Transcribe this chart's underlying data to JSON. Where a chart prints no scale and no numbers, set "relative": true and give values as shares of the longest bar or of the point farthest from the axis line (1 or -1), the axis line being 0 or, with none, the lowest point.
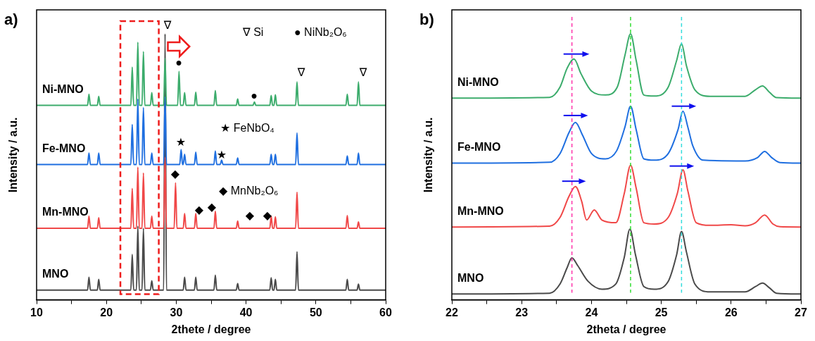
{
  "chart_data": [
    {
      "type": "line",
      "title": "a)",
      "xlabel": "2thete / degree",
      "ylabel": "Intensity / a.u.",
      "relative": true,
      "marker": "none",
      "line_style": "solid",
      "legend": false,
      "grid": false,
      "xlim": [
        10,
        60
      ],
      "xticks": [
        10,
        {
          "value": 15,
          "label": null
        },
        20,
        {
          "value": 25,
          "label": null
        },
        30,
        {
          "value": 35,
          "label": null
        },
        40,
        {
          "value": 45,
          "label": null
        },
        50,
        {
          "value": 55,
          "label": null
        },
        60
      ],
      "series": [
        {
          "name": "Ni-MNO",
          "color": "#3cac6c",
          "x": [
            10,
            17.3,
            17.5,
            17.7,
            18.7,
            18.9,
            19.1,
            23.5,
            23.7,
            23.9,
            24.3,
            24.5,
            24.7,
            25.1,
            25.3,
            25.5,
            26.3,
            26.5,
            26.7,
            28.2,
            28.4,
            28.6,
            30.2,
            30.4,
            30.6,
            31,
            31.2,
            31.4,
            32.6,
            32.8,
            33,
            35.4,
            35.6,
            35.8,
            38.6,
            38.8,
            39,
            41,
            41.2,
            41.4,
            43.4,
            43.6,
            43.8,
            44,
            44.2,
            44.4,
            47.1,
            47.3,
            47.5,
            54.3,
            54.5,
            54.7,
            55.9,
            56.1,
            56.3,
            60
          ],
          "values": [
            0.731,
            0.731,
            0.773,
            0.731,
            0.731,
            0.765,
            0.731,
            0.731,
            0.875,
            0.731,
            0.731,
            0.968,
            0.731,
            0.731,
            0.933,
            0.731,
            0.731,
            0.779,
            0.731,
            0.731,
            0.907,
            0.731,
            0.731,
            0.859,
            0.731,
            0.731,
            0.779,
            0.731,
            0.731,
            0.781,
            0.731,
            0.731,
            0.787,
            0.731,
            0.731,
            0.755,
            0.731,
            0.731,
            0.744,
            0.731,
            0.731,
            0.768,
            0.731,
            0.731,
            0.771,
            0.731,
            0.731,
            0.819,
            0.731,
            0.731,
            0.773,
            0.731,
            0.731,
            0.819,
            0.731,
            0.731
          ]
        },
        {
          "name": "Fe-MNO",
          "color": "#1f6fe0",
          "x": [
            10,
            17.3,
            17.5,
            17.7,
            18.7,
            18.9,
            19.1,
            23.5,
            23.7,
            23.9,
            24.3,
            24.5,
            24.7,
            25.1,
            25.3,
            25.5,
            26.3,
            26.5,
            26.7,
            28.2,
            28.4,
            28.6,
            30.5,
            30.7,
            30.9,
            31,
            31.2,
            31.4,
            32.6,
            32.8,
            33,
            35.4,
            35.6,
            35.8,
            36.3,
            36.5,
            36.7,
            38.6,
            38.8,
            39,
            43.4,
            43.6,
            43.8,
            44,
            44.2,
            44.4,
            47.1,
            47.3,
            47.5,
            54.3,
            54.5,
            54.7,
            55.9,
            56.1,
            56.3,
            60
          ],
          "values": [
            0.509,
            0.509,
            0.552,
            0.509,
            0.509,
            0.552,
            0.509,
            0.509,
            0.659,
            0.509,
            0.509,
            0.755,
            0.509,
            0.509,
            0.723,
            0.509,
            0.509,
            0.552,
            0.509,
            0.509,
            0.763,
            0.509,
            0.509,
            0.565,
            0.509,
            0.509,
            0.547,
            0.509,
            0.509,
            0.555,
            0.509,
            0.509,
            0.56,
            0.509,
            0.509,
            0.525,
            0.509,
            0.509,
            0.533,
            0.509,
            0.509,
            0.547,
            0.509,
            0.509,
            0.547,
            0.509,
            0.509,
            0.627,
            0.509,
            0.509,
            0.541,
            0.509,
            0.509,
            0.552,
            0.509,
            0.509
          ]
        },
        {
          "name": "Mn-MNO",
          "color": "#f04848",
          "x": [
            10,
            17.3,
            17.5,
            17.7,
            18.7,
            18.9,
            19.1,
            23.5,
            23.7,
            23.9,
            24.3,
            24.5,
            24.7,
            25.1,
            25.3,
            25.5,
            26.3,
            26.5,
            26.7,
            28.2,
            28.4,
            28.6,
            29.7,
            29.9,
            30.1,
            31,
            31.2,
            31.4,
            32.6,
            32.8,
            33,
            35.4,
            35.6,
            35.8,
            38.6,
            38.8,
            39,
            43.4,
            43.6,
            43.8,
            44,
            44.2,
            44.4,
            47.1,
            47.3,
            47.5,
            54.3,
            54.5,
            54.7,
            55.9,
            56.1,
            56.3,
            60
          ],
          "values": [
            0.269,
            0.269,
            0.315,
            0.269,
            0.269,
            0.309,
            0.269,
            0.269,
            0.419,
            0.269,
            0.269,
            0.499,
            0.269,
            0.269,
            0.477,
            0.269,
            0.269,
            0.315,
            0.269,
            0.269,
            0.536,
            0.269,
            0.269,
            0.44,
            0.269,
            0.269,
            0.325,
            0.269,
            0.269,
            0.325,
            0.269,
            0.269,
            0.333,
            0.269,
            0.269,
            0.296,
            0.269,
            0.269,
            0.315,
            0.269,
            0.269,
            0.312,
            0.269,
            0.269,
            0.405,
            0.269,
            0.269,
            0.317,
            0.269,
            0.269,
            0.293,
            0.269,
            0.269
          ]
        },
        {
          "name": "MNO",
          "color": "#4a4a4a",
          "x": [
            10,
            17.3,
            17.5,
            17.7,
            18.7,
            18.9,
            19.1,
            23.5,
            23.7,
            23.9,
            24.3,
            24.5,
            24.7,
            25.1,
            25.3,
            25.5,
            26.3,
            26.5,
            26.7,
            28.2,
            28.4,
            28.6,
            31,
            31.2,
            31.4,
            32.6,
            32.8,
            33,
            35.4,
            35.6,
            35.8,
            38.6,
            38.8,
            39,
            43.4,
            43.6,
            43.8,
            44,
            44.2,
            44.4,
            47.1,
            47.3,
            47.5,
            54.3,
            54.5,
            54.7,
            55.9,
            56.1,
            56.3,
            60
          ],
          "values": [
            0.037,
            0.037,
            0.085,
            0.037,
            0.037,
            0.077,
            0.037,
            0.037,
            0.171,
            0.037,
            0.037,
            0.277,
            0.037,
            0.037,
            0.269,
            0.037,
            0.037,
            0.072,
            0.037,
            0.037,
            1.0,
            0.037,
            0.037,
            0.085,
            0.037,
            0.037,
            0.085,
            0.037,
            0.037,
            0.093,
            0.037,
            0.037,
            0.061,
            0.037,
            0.037,
            0.083,
            0.037,
            0.037,
            0.077,
            0.037,
            0.037,
            0.181,
            0.037,
            0.037,
            0.077,
            0.037,
            0.037,
            0.059,
            0.037,
            0.037
          ]
        }
      ],
      "annotations": [
        "∇ Si",
        "● NiNb₂O₆",
        "★ FeNbO₄",
        "◆ MnNb₂O₆",
        "∇",
        "∇",
        "∇",
        "●",
        "●",
        "★",
        "★",
        "◆",
        "◆",
        "◆",
        "◆",
        "◆"
      ]
    },
    {
      "type": "line",
      "title": "b)",
      "xlabel": "2theta / degree",
      "ylabel": "Intensity / a.u.",
      "relative": true,
      "marker": "none",
      "line_style": "solid",
      "legend": false,
      "grid": false,
      "xlim": [
        22,
        27
      ],
      "xticks": [
        22,
        {
          "value": 22.5,
          "label": null
        },
        23,
        {
          "value": 23.5,
          "label": null
        },
        24,
        {
          "value": 24.5,
          "label": null
        },
        25,
        {
          "value": 25.5,
          "label": null
        },
        26,
        {
          "value": 26.5,
          "label": null
        },
        27
      ],
      "series": [
        {
          "name": "Ni-MNO",
          "color": "#3cac6c",
          "x": [
            22,
            23.4,
            23.55,
            23.65,
            23.75,
            23.85,
            24.0,
            24.2,
            24.37,
            24.48,
            24.56,
            24.64,
            24.75,
            24.9,
            25.1,
            25.22,
            25.29,
            25.36,
            25.48,
            25.7,
            26.2,
            26.35,
            26.45,
            26.55,
            26.65,
            27
          ],
          "values": [
            0.758,
            0.761,
            0.8,
            0.87,
            0.905,
            0.85,
            0.785,
            0.77,
            0.8,
            0.92,
            1.0,
            0.9,
            0.77,
            0.766,
            0.8,
            0.9,
            0.963,
            0.88,
            0.79,
            0.765,
            0.765,
            0.79,
            0.804,
            0.78,
            0.76,
            0.758
          ]
        },
        {
          "name": "Fe-MNO",
          "color": "#1f6fe0",
          "x": [
            22,
            23.4,
            23.55,
            23.68,
            23.77,
            23.87,
            24.0,
            24.2,
            24.36,
            24.48,
            24.56,
            24.64,
            24.75,
            24.9,
            25.1,
            25.24,
            25.31,
            25.38,
            25.45,
            25.6,
            26.2,
            26.38,
            26.48,
            26.58,
            26.7,
            27
          ],
          "values": [
            0.514,
            0.517,
            0.55,
            0.63,
            0.667,
            0.62,
            0.55,
            0.53,
            0.56,
            0.65,
            0.728,
            0.64,
            0.53,
            0.525,
            0.55,
            0.64,
            0.709,
            0.65,
            0.58,
            0.525,
            0.522,
            0.535,
            0.558,
            0.535,
            0.516,
            0.514
          ]
        },
        {
          "name": "Mn-MNO",
          "color": "#f04848",
          "x": [
            22,
            23.4,
            23.55,
            23.68,
            23.77,
            23.86,
            23.93,
            24.04,
            24.15,
            24.35,
            24.47,
            24.56,
            24.64,
            24.75,
            24.9,
            25.1,
            25.23,
            25.31,
            25.38,
            25.5,
            25.7,
            26.0,
            26.2,
            26.35,
            26.48,
            26.6,
            26.7,
            27
          ],
          "values": [
            0.274,
            0.277,
            0.31,
            0.39,
            0.426,
            0.37,
            0.3,
            0.338,
            0.3,
            0.29,
            0.4,
            0.506,
            0.42,
            0.29,
            0.285,
            0.31,
            0.4,
            0.489,
            0.41,
            0.29,
            0.28,
            0.282,
            0.278,
            0.29,
            0.319,
            0.285,
            0.275,
            0.274
          ]
        },
        {
          "name": "MNO",
          "color": "#4a4a4a",
          "x": [
            22,
            23.4,
            23.55,
            23.65,
            23.72,
            23.8,
            23.95,
            24.15,
            24.35,
            24.47,
            24.55,
            24.63,
            24.75,
            24.9,
            25.1,
            25.22,
            25.29,
            25.36,
            25.48,
            25.7,
            26.2,
            26.35,
            26.45,
            26.55,
            26.65,
            27
          ],
          "values": [
            0.022,
            0.025,
            0.06,
            0.12,
            0.158,
            0.13,
            0.07,
            0.04,
            0.06,
            0.16,
            0.266,
            0.17,
            0.05,
            0.04,
            0.07,
            0.17,
            0.257,
            0.18,
            0.06,
            0.03,
            0.03,
            0.05,
            0.063,
            0.045,
            0.025,
            0.022
          ]
        }
      ],
      "ref_lines": [
        {
          "axis": "x",
          "value": 23.72,
          "color": "#ff33aa",
          "line_style": "dashed"
        },
        {
          "axis": "x",
          "value": 24.56,
          "color": "#33dd33",
          "line_style": "dashed"
        },
        {
          "axis": "x",
          "value": 25.29,
          "color": "#33dddd",
          "line_style": "dashed"
        }
      ]
    }
  ]
}
